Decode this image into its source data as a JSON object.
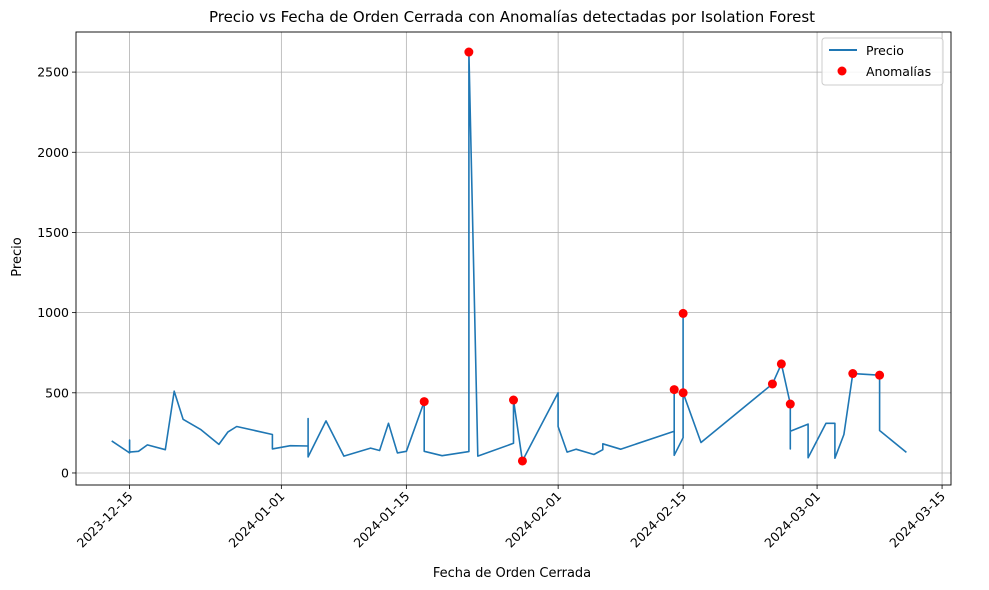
{
  "chart_data": {
    "type": "line",
    "title": "Precio vs Fecha de Orden Cerrada con Anomalías detectadas por Isolation Forest",
    "xlabel": "Fecha de Orden Cerrada",
    "ylabel": "Precio",
    "xlim": [
      "2023-12-09",
      "2024-03-16"
    ],
    "ylim": [
      -75,
      2750
    ],
    "grid": true,
    "legend_position": "top-right",
    "x_ticks": [
      "2023-12-15",
      "2024-01-01",
      "2024-01-15",
      "2024-02-01",
      "2024-02-15",
      "2024-03-01",
      "2024-03-15"
    ],
    "y_ticks": [
      0,
      500,
      1000,
      1500,
      2000,
      2500
    ],
    "series": [
      {
        "name": "Precio",
        "color": "#1f77b4",
        "points": [
          [
            "2023-12-13",
            200
          ],
          [
            "2023-12-15",
            125
          ],
          [
            "2023-12-15",
            205
          ],
          [
            "2023-12-15",
            130
          ],
          [
            "2023-12-16",
            135
          ],
          [
            "2023-12-17",
            175
          ],
          [
            "2023-12-19",
            145
          ],
          [
            "2023-12-20",
            510
          ],
          [
            "2023-12-21",
            335
          ],
          [
            "2023-12-23",
            270
          ],
          [
            "2023-12-25",
            178
          ],
          [
            "2023-12-26",
            255
          ],
          [
            "2023-12-27",
            290
          ],
          [
            "2023-12-31",
            240
          ],
          [
            "2023-12-31",
            150
          ],
          [
            "2024-01-02",
            170
          ],
          [
            "2024-01-04",
            168
          ],
          [
            "2024-01-04",
            340
          ],
          [
            "2024-01-04",
            100
          ],
          [
            "2024-01-06",
            325
          ],
          [
            "2024-01-08",
            105
          ],
          [
            "2024-01-11",
            155
          ],
          [
            "2024-01-12",
            140
          ],
          [
            "2024-01-13",
            310
          ],
          [
            "2024-01-14",
            125
          ],
          [
            "2024-01-15",
            135
          ],
          [
            "2024-01-17",
            445
          ],
          [
            "2024-01-17",
            135
          ],
          [
            "2024-01-19",
            108
          ],
          [
            "2024-01-22",
            133
          ],
          [
            "2024-01-22",
            2625
          ],
          [
            "2024-01-23",
            105
          ],
          [
            "2024-01-27",
            185
          ],
          [
            "2024-01-27",
            455
          ],
          [
            "2024-01-28",
            75
          ],
          [
            "2024-02-01",
            500
          ],
          [
            "2024-02-01",
            290
          ],
          [
            "2024-02-02",
            130
          ],
          [
            "2024-02-03",
            148
          ],
          [
            "2024-02-05",
            115
          ],
          [
            "2024-02-06",
            145
          ],
          [
            "2024-02-06",
            182
          ],
          [
            "2024-02-08",
            148
          ],
          [
            "2024-02-14",
            260
          ],
          [
            "2024-02-14",
            520
          ],
          [
            "2024-02-14",
            110
          ],
          [
            "2024-02-15",
            220
          ],
          [
            "2024-02-15",
            995
          ],
          [
            "2024-02-15",
            500
          ],
          [
            "2024-02-17",
            190
          ],
          [
            "2024-02-25",
            555
          ],
          [
            "2024-02-26",
            680
          ],
          [
            "2024-02-27",
            430
          ],
          [
            "2024-02-27",
            150
          ],
          [
            "2024-02-27",
            260
          ],
          [
            "2024-02-29",
            305
          ],
          [
            "2024-02-29",
            95
          ],
          [
            "2024-03-02",
            310
          ],
          [
            "2024-03-03",
            310
          ],
          [
            "2024-03-03",
            92
          ],
          [
            "2024-03-04",
            240
          ],
          [
            "2024-03-05",
            620
          ],
          [
            "2024-03-08",
            610
          ],
          [
            "2024-03-08",
            265
          ],
          [
            "2024-03-11",
            128
          ]
        ]
      }
    ],
    "scatter": {
      "name": "Anomalías",
      "color": "#ff0000",
      "points": [
        [
          "2024-01-17",
          445
        ],
        [
          "2024-01-22",
          2625
        ],
        [
          "2024-01-27",
          455
        ],
        [
          "2024-01-28",
          75
        ],
        [
          "2024-02-14",
          520
        ],
        [
          "2024-02-15",
          995
        ],
        [
          "2024-02-15",
          500
        ],
        [
          "2024-02-25",
          555
        ],
        [
          "2024-02-26",
          680
        ],
        [
          "2024-02-27",
          430
        ],
        [
          "2024-03-05",
          620
        ],
        [
          "2024-03-08",
          610
        ]
      ]
    }
  }
}
